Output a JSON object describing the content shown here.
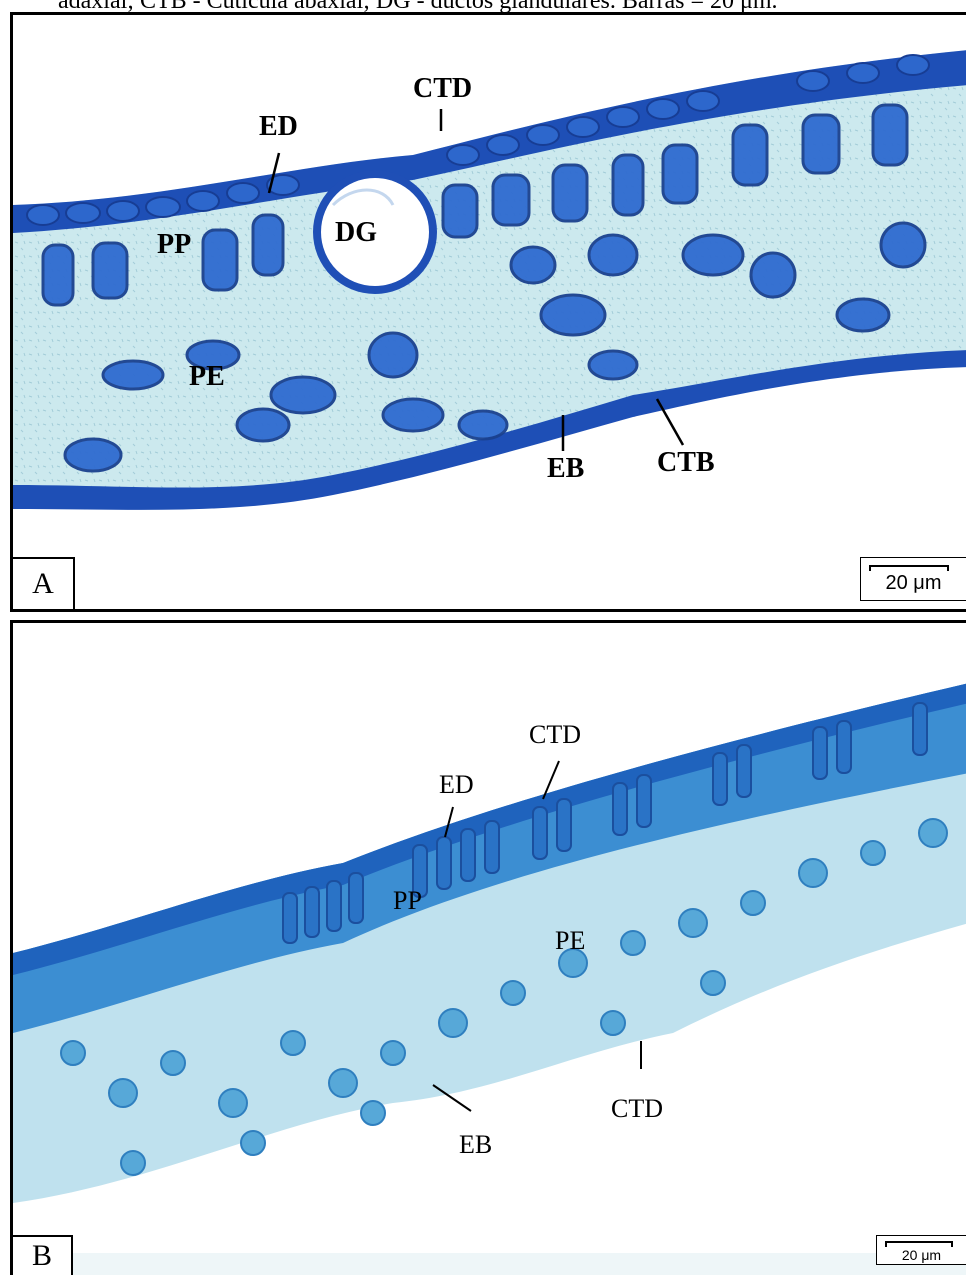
{
  "caption": "adaxial; CTB - Cutícula abaxial; DG - ductos glandulares. Barras = 20 μm.",
  "panels": [
    {
      "letter": "A",
      "scale_bar": "20 μm",
      "labels": {
        "ed": "ED",
        "ctd": "CTD",
        "dg": "DG",
        "pp": "PP",
        "pe": "PE",
        "eb": "EB",
        "ctb": "CTB"
      }
    },
    {
      "letter": "B",
      "scale_bar": "20 μm",
      "labels": {
        "ctd_top": "CTD",
        "ed": "ED",
        "pp": "PP",
        "pe": "PE",
        "eb": "EB",
        "ctd_bottom": "CTD"
      }
    }
  ],
  "colors": {
    "a_background": "#c9e8ec",
    "a_tissue": "#1f4fb8",
    "a_cell": "#2a62c8",
    "b_background": "#eef6f8",
    "b_tissue": "#56a9d6",
    "b_dark": "#1c5db7"
  }
}
